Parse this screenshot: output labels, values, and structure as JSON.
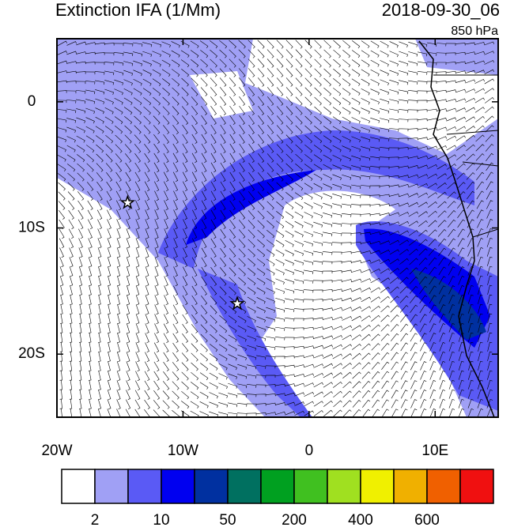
{
  "map": {
    "title": "Extinction IFA (1/Mm)",
    "time": "2018-09-30_06",
    "level": "850 hPa",
    "xlim": [
      -20,
      15
    ],
    "ylim": [
      -25,
      5
    ],
    "xticks": [
      {
        "value": -20,
        "label": "20W"
      },
      {
        "value": -10,
        "label": "10W"
      },
      0,
      {
        "value": 10,
        "label": "10E"
      }
    ],
    "yticks": [
      0,
      {
        "value": -10,
        "label": "10S"
      },
      {
        "value": -20,
        "label": "20S"
      }
    ],
    "markers": [
      {
        "lon": -14.4,
        "lat": -8
      },
      {
        "lon": -5.7,
        "lat": -16
      }
    ],
    "colorbar": {
      "colors": [
        "#ffffff",
        "#a0a0f5",
        "#5a5af5",
        "#0000f0",
        "#0030a0",
        "#007060",
        "#00a020",
        "#40c020",
        "#a0e020",
        "#f0f000",
        "#f0b000",
        "#f06000",
        "#f01010"
      ],
      "labels": [
        2,
        10,
        50,
        200,
        400,
        600
      ]
    }
  }
}
